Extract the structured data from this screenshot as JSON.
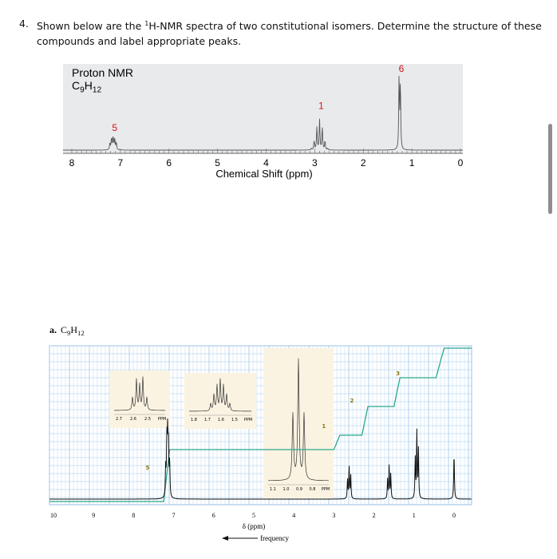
{
  "question": {
    "number": "4.",
    "text_before": "Shown below are the ",
    "sup": "1",
    "text_after": "H-NMR spectra of two constitutional isomers. Determine the structure of these compounds and label appropriate peaks."
  },
  "chart_data": [
    {
      "type": "line",
      "chart_title": "Proton NMR",
      "formula_base": "C",
      "formula_sub1": "9",
      "formula_mid": "H",
      "formula_sub2": "12",
      "xlabel": "Chemical Shift (ppm)",
      "xlim": [
        8,
        0
      ],
      "x_reversed": true,
      "x_ticks": [
        8,
        7,
        6,
        5,
        4,
        3,
        2,
        1,
        0
      ],
      "background_color": "#e9eaec",
      "line_color": "#555555",
      "peak_label_color": "#d0121b",
      "peaks": [
        {
          "shift": 7.15,
          "relative_height": 0.16,
          "multiplet": "m",
          "label": "5"
        },
        {
          "shift": 2.9,
          "relative_height": 0.38,
          "multiplet": "septet",
          "label": "1"
        },
        {
          "shift": 1.25,
          "relative_height": 0.9,
          "multiplet": "d",
          "label": "6"
        }
      ]
    },
    {
      "type": "line",
      "panel_label": "a.",
      "formula_base": "C",
      "formula_sub1": "9",
      "formula_mid": "H",
      "formula_sub2": "12",
      "xlabel": "δ (ppm)",
      "arrow_label": "frequency",
      "xlim": [
        10,
        -0.5
      ],
      "x_reversed": true,
      "x_ticks": [
        10,
        9,
        8,
        7,
        6,
        5,
        4,
        3,
        2,
        1,
        0
      ],
      "grid": true,
      "grid_color": "#9fc7ea",
      "integration_color": "#2aa88c",
      "spectrum_color": "#111111",
      "integration_labels": [
        {
          "shift": 7.3,
          "label": "5"
        },
        {
          "shift": 2.9,
          "label": "1"
        },
        {
          "shift": 2.2,
          "label": "2"
        },
        {
          "shift": 1.05,
          "label": "3"
        }
      ],
      "integration_color_label": "#8a7a10",
      "peaks": [
        {
          "shift": 7.15,
          "relative_height": 0.38
        },
        {
          "shift": 2.62,
          "relative_height": 0.22
        },
        {
          "shift": 1.62,
          "relative_height": 0.22
        },
        {
          "shift": 0.93,
          "relative_height": 0.45
        },
        {
          "shift": 0.0,
          "relative_height": 0.3
        }
      ],
      "insets": [
        {
          "tick_labels": [
            "2.7",
            "2.6",
            "2.5",
            "PPM"
          ],
          "region": "2.6 ppm multiplet"
        },
        {
          "tick_labels": [
            "1.8",
            "1.7",
            "1.6",
            "1.5",
            "PPM"
          ],
          "region": "1.6 ppm multiplet"
        },
        {
          "tick_labels": [
            "1.1",
            "1.0",
            "0.9",
            "0.8",
            "PPM"
          ],
          "region": "0.93 ppm triplet"
        }
      ],
      "inset_color": "#fbf3e2"
    }
  ]
}
